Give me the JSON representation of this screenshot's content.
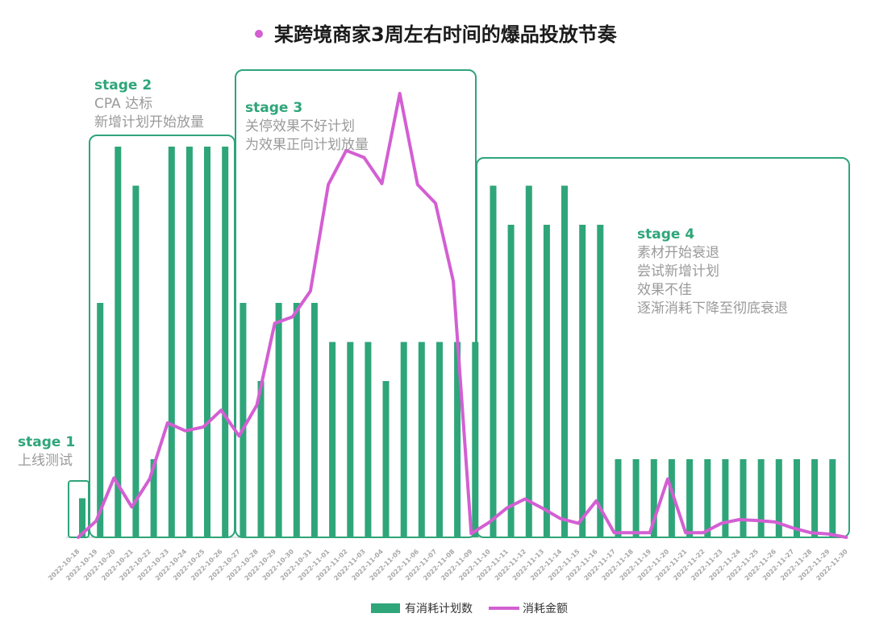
{
  "colors": {
    "bar": "#2fa57a",
    "line": "#d35fd3",
    "stage_box": "#2fa57a",
    "stage_label": "#2fa57a",
    "stage_desc": "#9a9a9a"
  },
  "chart_data": {
    "type": "bar",
    "title": "某跨境商家3周左右时间的爆品投放节奏",
    "categories": [
      "2022-10-18",
      "2022-10-19",
      "2022-10-20",
      "2022-10-21",
      "2022-10-22",
      "2022-10-23",
      "2022-10-24",
      "2022-10-25",
      "2022-10-26",
      "2022-10-27",
      "2022-10-28",
      "2022-10-29",
      "2022-10-30",
      "2022-10-31",
      "2022-11-01",
      "2022-11-02",
      "2022-11-03",
      "2022-11-04",
      "2022-11-05",
      "2022-11-06",
      "2022-11-07",
      "2022-11-08",
      "2022-11-09",
      "2022-11-10",
      "2022-11-11",
      "2022-11-12",
      "2022-11-13",
      "2022-11-14",
      "2022-11-15",
      "2022-11-16",
      "2022-11-17",
      "2022-11-18",
      "2022-11-19",
      "2022-11-20",
      "2022-11-21",
      "2022-11-22",
      "2022-11-23",
      "2022-11-24",
      "2022-11-25",
      "2022-11-26",
      "2022-11-27",
      "2022-11-28",
      "2022-11-29",
      "2022-11-30"
    ],
    "series": [
      {
        "name": "有消耗计划数",
        "kind": "bar",
        "values": [
          1,
          6,
          10,
          9,
          2,
          10,
          10,
          10,
          10,
          6,
          4,
          6,
          6,
          6,
          5,
          5,
          5,
          4,
          5,
          5,
          5,
          5,
          5,
          9,
          8,
          9,
          8,
          9,
          8,
          8,
          2,
          2,
          2,
          2,
          2,
          2,
          2,
          2,
          2,
          2,
          2,
          2,
          2,
          null
        ]
      },
      {
        "name": "消耗金额",
        "kind": "line",
        "values": [
          0,
          3.5,
          12.7,
          6.5,
          12.5,
          24.5,
          22.8,
          23.6,
          27.2,
          21.7,
          28.3,
          45.8,
          47.2,
          52.7,
          75.5,
          82.8,
          81.3,
          75.7,
          95,
          75.5,
          71.5,
          54.8,
          0.8,
          3.2,
          6.3,
          8.2,
          6.2,
          4,
          3,
          7.8,
          1,
          1,
          1,
          12.5,
          1,
          1,
          3,
          3.8,
          3.6,
          3.3,
          2,
          1,
          0.7,
          0
        ]
      }
    ],
    "bar_max": 10,
    "line_max": 100,
    "xlabel": "",
    "ylabel": "",
    "legend_position": "bottom-center"
  },
  "stages": [
    {
      "label": "stage 1",
      "desc": [
        "上线测试"
      ]
    },
    {
      "label": "stage 2",
      "desc": [
        "CPA 达标",
        "新增计划开始放量"
      ]
    },
    {
      "label": "stage 3",
      "desc": [
        "关停效果不好计划",
        "为效果正向计划放量"
      ]
    },
    {
      "label": "stage 4",
      "desc": [
        "素材开始衰退",
        "尝试新增计划",
        "效果不佳",
        "逐渐消耗下降至彻底衰退"
      ]
    }
  ]
}
